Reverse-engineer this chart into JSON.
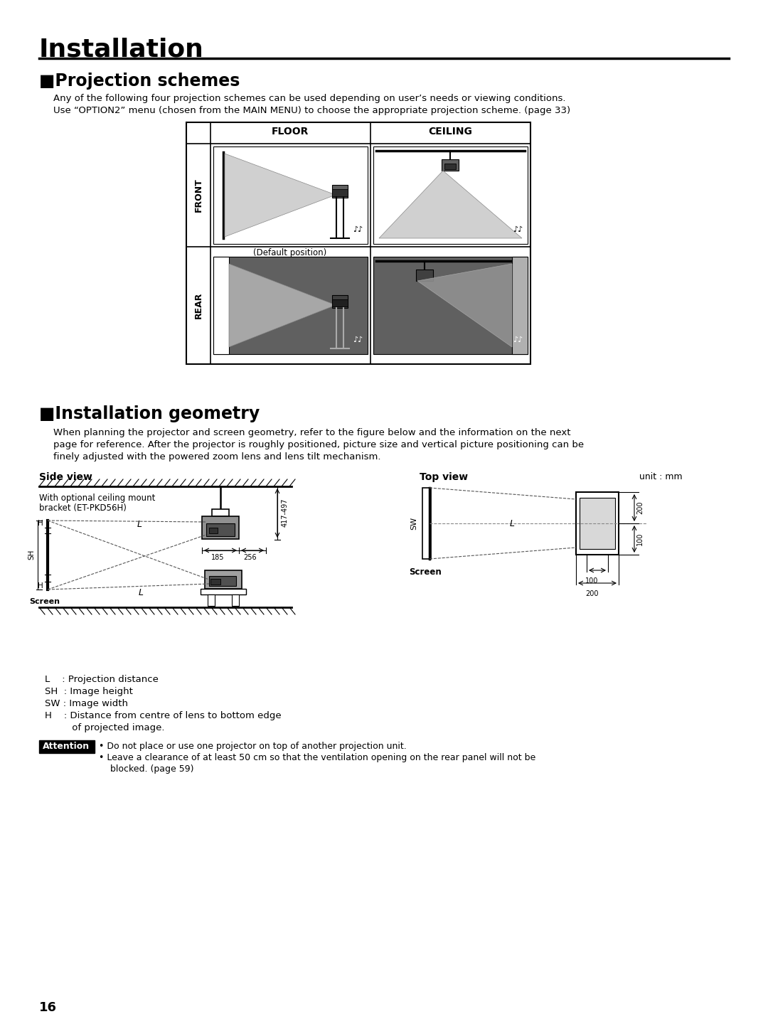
{
  "title": "Installation",
  "section1_title": "Projection schemes",
  "section1_text1": "Any of the following four projection schemes can be used depending on user’s needs or viewing conditions.",
  "section1_text2": "Use “OPTION2” menu (chosen from the MAIN MENU) to choose the appropriate projection scheme. (page 33)",
  "section2_title": "Installation geometry",
  "section2_text1": "When planning the projector and screen geometry, refer to the figure below and the information on the next",
  "section2_text2": "page for reference. After the projector is roughly positioned, picture size and vertical picture positioning can be",
  "section2_text3": "finely adjusted with the powered zoom lens and lens tilt mechanism.",
  "table_col1": "FLOOR",
  "table_col2": "CEILING",
  "table_row1": "FRONT",
  "table_row2": "REAR",
  "default_label": "(Default position)",
  "side_view_label": "Side view",
  "top_view_label": "Top view",
  "unit_label": "unit : mm",
  "ceiling_mount_text1": "With optional ceiling mount",
  "ceiling_mount_text2": "bracket (ET-PKD56H)",
  "screen_label": "Screen",
  "dim_417": "417-497",
  "dim_185": "185",
  "dim_256": "256",
  "dim_100_bottom": "100",
  "dim_200_bottom": "200",
  "dim_200_right": "200",
  "dim_100_right": "100",
  "legend_L": "L    : Projection distance",
  "legend_SH": "SH  : Image height",
  "legend_SW": "SW : Image width",
  "legend_H1": "H    : Distance from centre of lens to bottom edge",
  "legend_H2": "         of projected image.",
  "attention_title": "Attention",
  "attention_text1": " Do not place or use one projector on top of another projection unit.",
  "attention_text2": " Leave a clearance of at least 50 cm so that the ventilation opening on the rear panel will not be",
  "attention_text3": "    blocked. (page 59)",
  "page_number": "16",
  "bg_color": "#ffffff",
  "text_color": "#000000",
  "gray_light": "#c8c8c8",
  "gray_medium": "#808080",
  "gray_dark": "#505050"
}
